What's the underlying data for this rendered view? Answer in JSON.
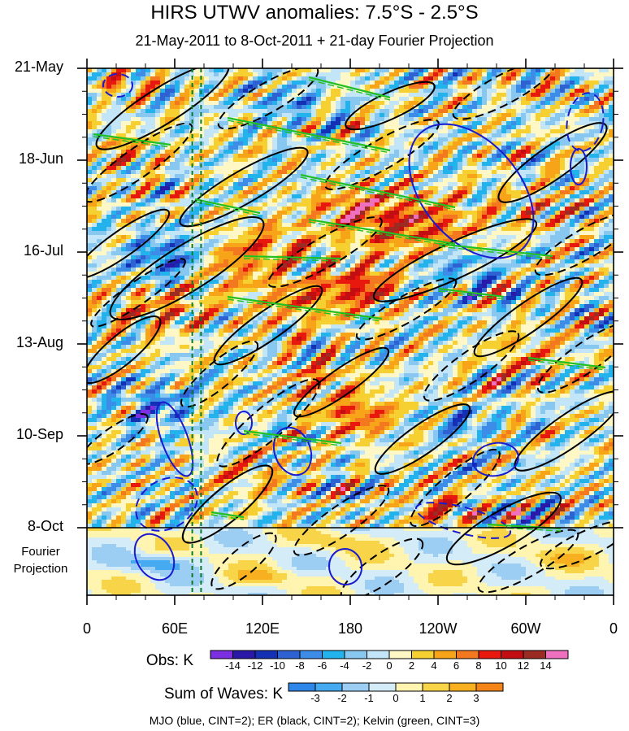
{
  "chart_data": {
    "type": "heatmap",
    "title": "HIRS UTWV anomalies: 7.5°S - 2.5°S",
    "subtitle": "21-May-2011 to 8-Oct-2011 + 21-day Fourier Projection",
    "x_tick_labels": [
      "0",
      "60E",
      "120E",
      "180",
      "120W",
      "60W",
      "0"
    ],
    "x_tick_values_deg_east": [
      0,
      60,
      120,
      180,
      240,
      300,
      360
    ],
    "y_tick_labels": [
      "21-May",
      "18-Jun",
      "16-Jul",
      "13-Aug",
      "10-Sep",
      "8-Oct"
    ],
    "y_projection_label": "Fourier Projection",
    "y_range": [
      "21-May-2011",
      "29-Oct-2011"
    ],
    "obs_colorbar": {
      "title": "Obs: K",
      "levels": [
        -14,
        -12,
        -10,
        -8,
        -6,
        -4,
        -2,
        0,
        2,
        4,
        6,
        8,
        10,
        12,
        14
      ],
      "colors": [
        "#7b2fe0",
        "#2a18a8",
        "#1430b4",
        "#2e62d2",
        "#3c8ce8",
        "#22b2ec",
        "#88c8f0",
        "#c2e6f8",
        "#fff8c6",
        "#f6d030",
        "#f8a418",
        "#f47820",
        "#e8180e",
        "#c20e12",
        "#9a2c24",
        "#f070c0"
      ]
    },
    "waves_colorbar": {
      "title": "Sum of Waves: K",
      "levels": [
        -3,
        -2,
        -1,
        0,
        1,
        2,
        3
      ],
      "colors": [
        "#2e86e8",
        "#46aaf0",
        "#9ccef4",
        "#d4ecf8",
        "#fff4b0",
        "#f8d448",
        "#f8b020",
        "#f48418"
      ]
    },
    "vertical_reference_lines_deg_east": [
      72,
      78
    ],
    "contour_legend": "MJO (blue, CINT=2); ER (black, CINT=2); Kelvin (green, CINT=3)"
  }
}
